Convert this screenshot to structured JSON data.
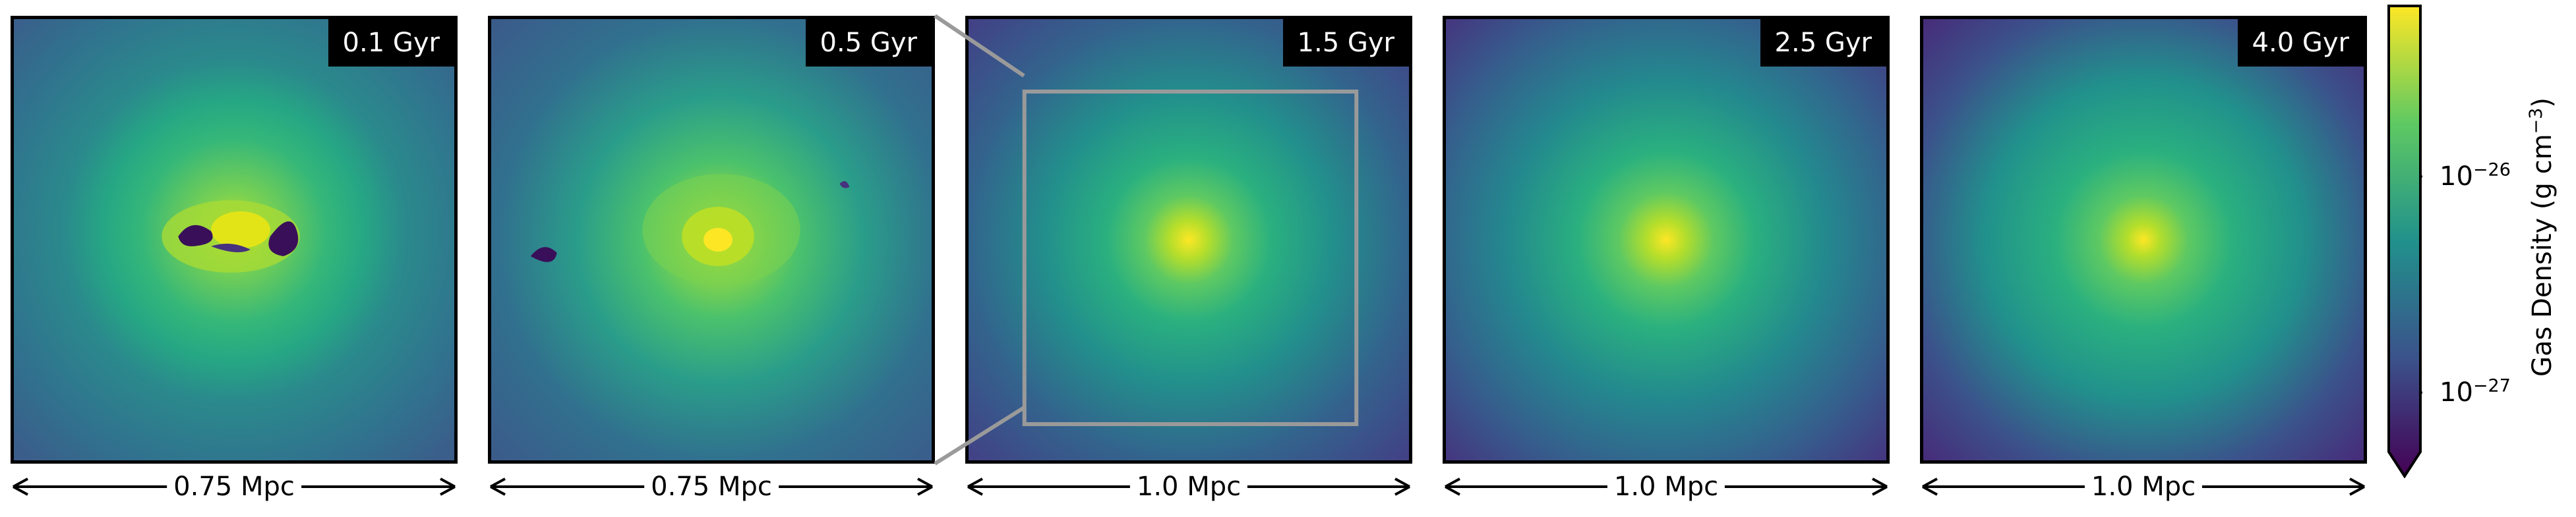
{
  "panels": [
    {
      "time": "0.1 Gyr",
      "scale": "0.75 Mpc"
    },
    {
      "time": "0.5 Gyr",
      "scale": "0.75 Mpc"
    },
    {
      "time": "1.5 Gyr",
      "scale": "1.0 Mpc"
    },
    {
      "time": "2.5 Gyr",
      "scale": "1.0 Mpc"
    },
    {
      "time": "4.0 Gyr",
      "scale": "1.0 Mpc"
    }
  ],
  "colorbar": {
    "title_prefix": "Gas Density (g cm",
    "title_exp": "−3",
    "title_suffix": ")",
    "ticks": [
      {
        "base": "10",
        "exp": "−26"
      },
      {
        "base": "10",
        "exp": "−27"
      }
    ],
    "colormap": "viridis",
    "colors": [
      "#440154",
      "#3b528b",
      "#21918c",
      "#5ec962",
      "#fde725"
    ]
  },
  "zoom_box_color": "#9a9a9a"
}
